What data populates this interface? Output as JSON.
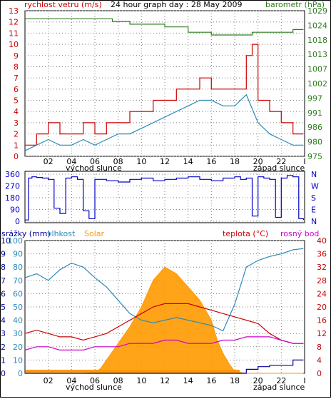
{
  "title": "24 hour graph day : 28 May 2009",
  "colors": {
    "wind": "#cc0000",
    "wind_avg": "#2a8ab8",
    "pressure": "#2e7d1e",
    "direction": "#0000cc",
    "rain": "#000099",
    "humidity": "#2a8ab8",
    "solar": "#ff9900",
    "temperature": "#cc0000",
    "dew_point": "#cc00cc",
    "grid": "#808080"
  },
  "time_axis": {
    "ticks": [
      "02",
      "04",
      "06",
      "08",
      "10",
      "12",
      "14",
      "16",
      "18",
      "20",
      "22",
      "I"
    ],
    "sunrise_label": "východ slunce",
    "sunset_label": "západ slunce"
  },
  "chart_data": [
    {
      "type": "line",
      "name": "wind-pressure",
      "left_label": "rychlost vetru (m/s)",
      "right_label": "barometr (hPa)",
      "left_ticks": [
        "0",
        "1",
        "2",
        "3",
        "4",
        "5",
        "6",
        "7",
        "8",
        "9",
        "10",
        "11",
        "12",
        "13"
      ],
      "right_ticks": [
        "975",
        "980",
        "986",
        "991",
        "997",
        "1002",
        "1007",
        "1013",
        "1018",
        "1024",
        "1029"
      ],
      "x_range": [
        0,
        24
      ],
      "ylim_left": [
        0,
        13
      ],
      "ylim_right": [
        975,
        1029
      ],
      "series": [
        {
          "key": "wind_gust",
          "x": [
            0,
            1,
            2,
            3,
            4,
            5,
            6,
            7,
            8,
            9,
            10,
            11,
            12,
            13,
            14,
            15,
            16,
            17,
            18,
            19,
            19.5,
            20,
            21,
            22,
            23,
            23.9
          ],
          "y": [
            1,
            2,
            3,
            2,
            2,
            3,
            2,
            3,
            3,
            4,
            4,
            5,
            5,
            6,
            6,
            7,
            6,
            6,
            6,
            9,
            10,
            5,
            4,
            3,
            2,
            2
          ]
        },
        {
          "key": "wind_avg",
          "x": [
            0,
            1,
            2,
            3,
            4,
            5,
            6,
            7,
            8,
            9,
            10,
            11,
            12,
            13,
            14,
            15,
            16,
            17,
            18,
            19,
            20,
            21,
            22,
            23,
            23.9
          ],
          "y": [
            0.5,
            1,
            1.5,
            1,
            1,
            1.5,
            1,
            1.5,
            2,
            2,
            2.5,
            3,
            3.5,
            4,
            4.5,
            5,
            5,
            4.5,
            4.5,
            5.5,
            3,
            2,
            1.5,
            1,
            1
          ]
        },
        {
          "key": "pressure",
          "x": [
            0,
            6,
            7.5,
            9,
            12,
            14,
            16,
            18,
            19,
            19.5,
            21,
            23,
            23.9
          ],
          "y": [
            1026,
            1026,
            1025,
            1024,
            1023,
            1021,
            1020,
            1020,
            1020,
            1021,
            1021,
            1022,
            1022
          ]
        }
      ]
    },
    {
      "type": "line",
      "name": "wind-direction",
      "left_ticks": [
        "0",
        "90",
        "180",
        "270",
        "360"
      ],
      "right_ticks": [
        "N",
        "E",
        "S",
        "W",
        "N"
      ],
      "x_range": [
        0,
        24
      ],
      "ylim": [
        0,
        360
      ],
      "series": [
        {
          "key": "direction",
          "x": [
            0,
            0.3,
            0.6,
            1,
            1.5,
            2,
            2.5,
            3,
            3.5,
            4,
            4.5,
            5,
            5.5,
            6,
            7,
            8,
            9,
            10,
            11,
            12,
            13,
            14,
            15,
            16,
            17,
            18,
            18.5,
            19,
            19.5,
            20,
            20.5,
            21,
            21.5,
            22,
            22.5,
            23,
            23.5,
            23.9
          ],
          "y": [
            10,
            330,
            340,
            335,
            330,
            320,
            100,
            60,
            330,
            340,
            320,
            80,
            20,
            320,
            310,
            300,
            320,
            330,
            310,
            320,
            330,
            340,
            320,
            310,
            330,
            340,
            320,
            330,
            40,
            340,
            330,
            320,
            30,
            330,
            350,
            340,
            20,
            10
          ]
        }
      ]
    },
    {
      "type": "line",
      "name": "rain-humidity-solar-temperature",
      "left_label": "srážky (mm)",
      "humidity_label": "vlhkost",
      "solar_label": "Solar",
      "right_label": "teplota (°C)",
      "dew_label": "rosný bod",
      "rain_ticks": [
        "0",
        "1",
        "2",
        "3",
        "4",
        "5",
        "6",
        "7",
        "8",
        "9",
        "10"
      ],
      "humidity_ticks": [
        "0",
        "10",
        "20",
        "30",
        "40",
        "50",
        "60",
        "70",
        "80",
        "90",
        "100"
      ],
      "temp_ticks": [
        "0",
        "4",
        "8",
        "12",
        "16",
        "20",
        "24",
        "28",
        "32",
        "36",
        "40"
      ],
      "x_range": [
        0,
        24
      ],
      "series": [
        {
          "key": "humidity",
          "x": [
            0,
            1,
            2,
            3,
            4,
            5,
            6,
            7,
            8,
            9,
            10,
            11,
            12,
            13,
            14,
            15,
            16,
            17,
            18,
            19,
            20,
            21,
            22,
            23,
            23.9
          ],
          "y": [
            72,
            75,
            70,
            78,
            83,
            80,
            72,
            65,
            55,
            45,
            40,
            38,
            40,
            42,
            40,
            38,
            36,
            32,
            52,
            80,
            85,
            88,
            90,
            93,
            94
          ]
        },
        {
          "key": "temperature",
          "x": [
            0,
            1,
            2,
            3,
            4,
            5,
            6,
            7,
            8,
            9,
            10,
            11,
            12,
            13,
            14,
            15,
            16,
            17,
            18,
            19,
            20,
            21,
            22,
            23,
            23.9
          ],
          "y": [
            12,
            13,
            12,
            11,
            11,
            10,
            11,
            12,
            14,
            16,
            18,
            20,
            21,
            21,
            21,
            20,
            19,
            18,
            17,
            16,
            15,
            12,
            10,
            9,
            9
          ]
        },
        {
          "key": "dew_point",
          "x": [
            0,
            1,
            2,
            3,
            4,
            5,
            6,
            7,
            8,
            9,
            10,
            11,
            12,
            13,
            14,
            15,
            16,
            17,
            18,
            19,
            20,
            21,
            22,
            23,
            23.9
          ],
          "y": [
            7,
            8,
            8,
            7,
            7,
            7,
            8,
            8,
            8,
            9,
            9,
            9,
            10,
            10,
            9,
            9,
            9,
            10,
            10,
            11,
            11,
            11,
            10,
            9,
            9
          ]
        },
        {
          "key": "solar",
          "x": [
            0,
            5,
            6,
            6.5,
            7,
            8,
            9,
            10,
            11,
            12,
            13,
            14,
            15,
            16,
            16.5,
            17,
            17.5,
            18,
            19,
            20,
            23.9
          ],
          "y": [
            0,
            0,
            0.2,
            1.5,
            4,
            9,
            14,
            20,
            28,
            32,
            30,
            26,
            22,
            16,
            10,
            6,
            3,
            0.5,
            0,
            0,
            0
          ]
        },
        {
          "key": "rain",
          "x": [
            0,
            17,
            18,
            19,
            20,
            21,
            22,
            23,
            23.9
          ],
          "y": [
            0,
            0,
            0,
            0.3,
            0.5,
            0.6,
            0.6,
            1,
            1
          ]
        }
      ]
    }
  ]
}
